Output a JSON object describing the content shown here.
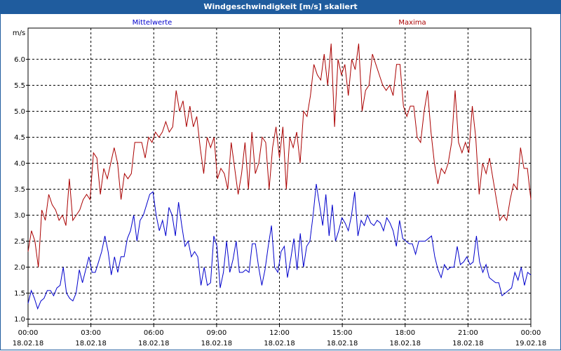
{
  "window": {
    "title": "Windgeschwindigkeit [m/s] skaliert"
  },
  "colors": {
    "mean": "#0000cc",
    "max": "#aa0000",
    "titlebar": "#1f5c9e",
    "grid": "#000000"
  },
  "chart_data": {
    "type": "line",
    "title": "Windgeschwindigkeit [m/s] skaliert",
    "ylabel": "m/s",
    "xlabel": "",
    "ylim": [
      0.9,
      6.6
    ],
    "yticks": [
      1.0,
      1.5,
      2.0,
      2.5,
      3.0,
      3.5,
      4.0,
      4.5,
      5.0,
      5.5,
      6.0
    ],
    "ytick_labels": [
      "1.0",
      "1.5",
      "2.0",
      "2.5",
      "3.0",
      "3.5",
      "4.0",
      "4.5",
      "5.0",
      "5.5",
      "6.0"
    ],
    "x_unit": "hours since 18.02.18 00:00",
    "xlim": [
      0,
      24
    ],
    "xticks": [
      0,
      3,
      6,
      9,
      12,
      15,
      18,
      21,
      24
    ],
    "xtick_labels": [
      [
        "00:00",
        "18.02.18"
      ],
      [
        "03:00",
        "18.02.18"
      ],
      [
        "06:00",
        "18.02.18"
      ],
      [
        "09:00",
        "18.02.18"
      ],
      [
        "12:00",
        "18.02.18"
      ],
      [
        "15:00",
        "18.02.18"
      ],
      [
        "18:00",
        "18.02.18"
      ],
      [
        "21:00",
        "18.02.18"
      ],
      [
        "00:00",
        "19.02.18"
      ]
    ],
    "grid": true,
    "series": [
      {
        "name": "Mittelwerte",
        "color": "#0000cc",
        "values": [
          1.3,
          1.55,
          1.4,
          1.2,
          1.35,
          1.4,
          1.55,
          1.55,
          1.45,
          1.6,
          1.65,
          2.0,
          1.5,
          1.4,
          1.35,
          1.5,
          1.95,
          1.7,
          1.95,
          2.2,
          1.9,
          1.9,
          2.1,
          2.3,
          2.6,
          2.3,
          1.85,
          2.2,
          1.9,
          2.2,
          2.2,
          2.55,
          2.7,
          3.0,
          2.5,
          2.9,
          3.0,
          3.2,
          3.4,
          3.45,
          3.0,
          2.7,
          2.9,
          2.6,
          3.15,
          3.0,
          2.6,
          3.25,
          2.8,
          2.4,
          2.5,
          2.2,
          2.3,
          2.2,
          1.65,
          2.0,
          1.65,
          1.7,
          2.6,
          2.4,
          1.6,
          1.9,
          2.5,
          1.9,
          2.15,
          2.5,
          1.9,
          1.9,
          1.95,
          1.9,
          2.45,
          2.45,
          2.0,
          1.65,
          1.95,
          2.4,
          2.8,
          2.0,
          1.9,
          2.3,
          2.4,
          1.8,
          2.15,
          2.55,
          1.95,
          2.65,
          2.0,
          2.4,
          2.5,
          3.0,
          3.6,
          3.2,
          2.8,
          3.4,
          2.6,
          3.2,
          2.5,
          2.7,
          2.95,
          2.85,
          2.7,
          3.0,
          3.45,
          2.6,
          2.9,
          2.8,
          3.0,
          2.85,
          2.8,
          2.9,
          2.85,
          2.7,
          2.95,
          2.85,
          2.7,
          2.4,
          2.9,
          2.55,
          2.5,
          2.45,
          2.45,
          2.25,
          2.5,
          2.5,
          2.5,
          2.55,
          2.6,
          2.2,
          1.95,
          1.8,
          2.05,
          1.95,
          2.0,
          2.0,
          2.4,
          2.05,
          2.1,
          2.2,
          2.05,
          2.1,
          2.6,
          2.1,
          1.9,
          2.05,
          1.8,
          1.75,
          1.7,
          1.7,
          1.45,
          1.5,
          1.55,
          1.6,
          1.9,
          1.75,
          2.0,
          1.65,
          1.9,
          1.85
        ]
      },
      {
        "name": "Maxima",
        "color": "#aa0000",
        "values": [
          2.3,
          2.7,
          2.5,
          2.0,
          3.1,
          2.9,
          3.4,
          3.2,
          3.1,
          2.9,
          3.0,
          2.8,
          3.7,
          2.9,
          3.0,
          3.1,
          3.3,
          3.4,
          3.3,
          4.2,
          4.1,
          3.4,
          3.9,
          3.7,
          4.0,
          4.3,
          4.0,
          3.3,
          3.8,
          3.7,
          3.8,
          4.4,
          4.4,
          4.4,
          4.1,
          4.5,
          4.4,
          4.6,
          4.5,
          4.6,
          4.8,
          4.6,
          4.7,
          5.4,
          5.0,
          5.2,
          4.7,
          5.1,
          4.7,
          4.9,
          4.3,
          3.8,
          4.5,
          4.3,
          4.5,
          3.7,
          3.9,
          3.8,
          3.5,
          4.4,
          3.9,
          3.4,
          3.8,
          4.4,
          3.5,
          4.6,
          3.8,
          4.0,
          4.5,
          4.4,
          3.5,
          4.3,
          4.7,
          4.1,
          4.7,
          3.5,
          4.5,
          4.3,
          4.6,
          4.0,
          5.0,
          4.9,
          5.3,
          5.9,
          5.7,
          5.6,
          6.1,
          5.5,
          6.3,
          4.7,
          6.0,
          5.7,
          5.9,
          5.3,
          6.0,
          5.8,
          6.3,
          5.0,
          5.4,
          5.5,
          6.1,
          5.9,
          5.7,
          5.5,
          5.4,
          5.5,
          5.3,
          5.9,
          5.9,
          5.1,
          4.9,
          5.1,
          5.1,
          4.5,
          4.4,
          5.0,
          5.4,
          4.6,
          4.0,
          3.6,
          3.9,
          3.8,
          4.0,
          4.4,
          5.4,
          4.4,
          4.2,
          4.4,
          4.2,
          5.1,
          4.5,
          3.4,
          4.0,
          3.8,
          4.1,
          3.7,
          3.3,
          2.9,
          3.0,
          2.9,
          3.3,
          3.6,
          3.5,
          4.3,
          3.9,
          3.9,
          3.3
        ]
      }
    ]
  }
}
